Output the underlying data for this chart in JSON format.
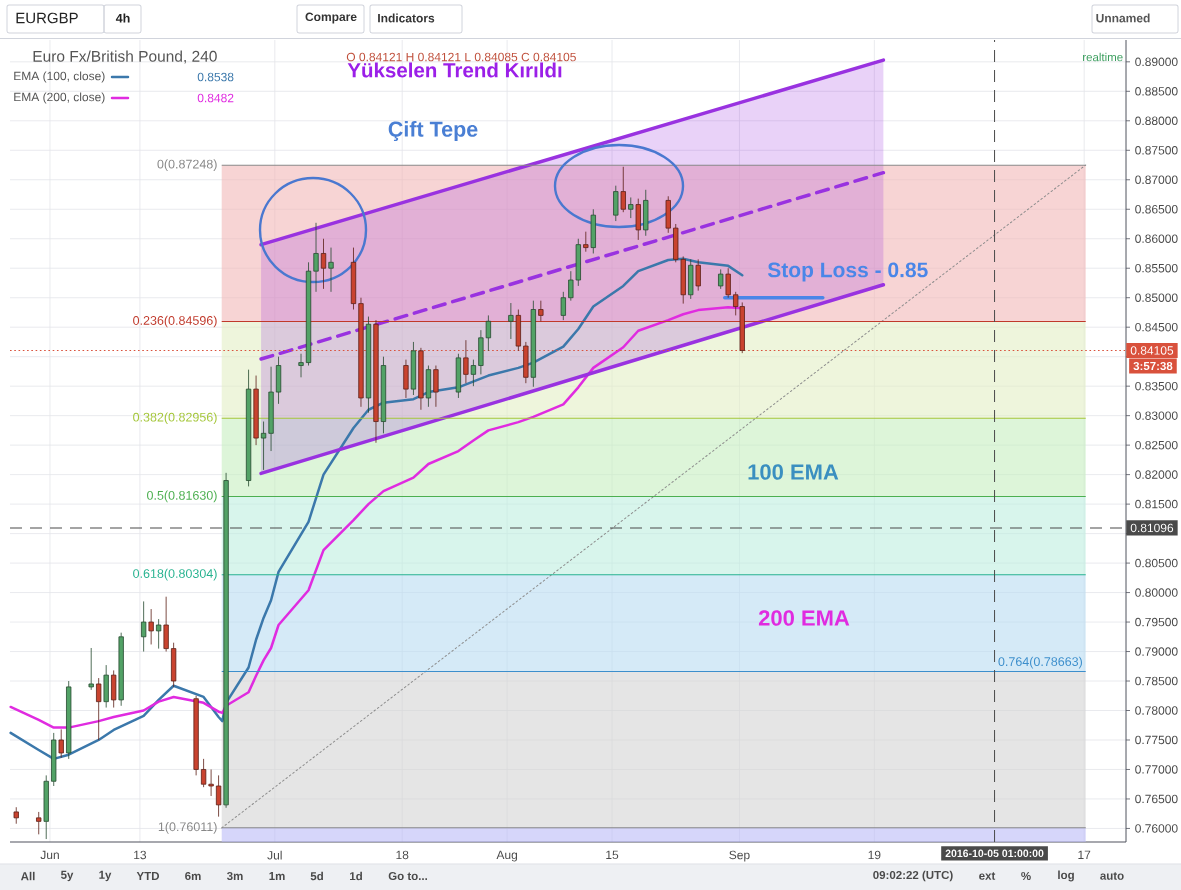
{
  "chart_data": {
    "type": "candlestick",
    "title": "Euro Fx/British Pound, 240",
    "subtitle": "O 0.84121 H 0.84121 L 0.84085 C 0.84105",
    "x": [
      "2016-05-27T12:00",
      "2016-05-30T12:00",
      "2016-05-31T12:00",
      "2016-06-01T12:00",
      "2016-06-02T12:00",
      "2016-06-03T12:00",
      "2016-06-06T12:00",
      "2016-06-07T12:00",
      "2016-06-08T12:00",
      "2016-06-09T12:00",
      "2016-06-10T12:00",
      "2016-06-13T12:00",
      "2016-06-14T12:00",
      "2016-06-15T12:00",
      "2016-06-16T12:00",
      "2016-06-17T12:00",
      "2016-06-20T12:00",
      "2016-06-21T12:00",
      "2016-06-22T12:00",
      "2016-06-23T12:00",
      "2016-06-24T12:00",
      "2016-06-27T12:00",
      "2016-06-28T12:00",
      "2016-06-29T12:00",
      "2016-06-30T12:00",
      "2016-07-01T12:00",
      "2016-07-04T12:00",
      "2016-07-05T12:00",
      "2016-07-06T12:00",
      "2016-07-07T12:00",
      "2016-07-08T12:00",
      "2016-07-11T12:00",
      "2016-07-12T12:00",
      "2016-07-13T12:00",
      "2016-07-14T12:00",
      "2016-07-15T12:00",
      "2016-07-18T12:00",
      "2016-07-19T12:00",
      "2016-07-20T12:00",
      "2016-07-21T12:00",
      "2016-07-22T12:00",
      "2016-07-25T12:00",
      "2016-07-26T12:00",
      "2016-07-27T12:00",
      "2016-07-28T12:00",
      "2016-07-29T12:00",
      "2016-08-01T12:00",
      "2016-08-02T12:00",
      "2016-08-03T12:00",
      "2016-08-04T12:00",
      "2016-08-05T12:00",
      "2016-08-08T12:00",
      "2016-08-09T12:00",
      "2016-08-10T12:00",
      "2016-08-11T12:00",
      "2016-08-12T12:00",
      "2016-08-15T12:00",
      "2016-08-16T12:00",
      "2016-08-17T12:00",
      "2016-08-18T12:00",
      "2016-08-19T12:00",
      "2016-08-22T12:00",
      "2016-08-23T12:00",
      "2016-08-24T12:00",
      "2016-08-25T12:00",
      "2016-08-26T12:00",
      "2016-08-29T12:00",
      "2016-08-30T12:00",
      "2016-08-31T12:00",
      "2016-09-01T09:00"
    ],
    "ohlc": [
      [
        0.7628,
        0.7636,
        0.7608,
        0.7618
      ],
      [
        0.7618,
        0.7628,
        0.759,
        0.7612
      ],
      [
        0.7612,
        0.769,
        0.7582,
        0.768
      ],
      [
        0.768,
        0.7762,
        0.7672,
        0.775
      ],
      [
        0.775,
        0.7768,
        0.772,
        0.7728
      ],
      [
        0.7728,
        0.785,
        0.7718,
        0.784
      ],
      [
        0.784,
        0.7906,
        0.7835,
        0.7845
      ],
      [
        0.7845,
        0.7855,
        0.775,
        0.7815
      ],
      [
        0.7815,
        0.7877,
        0.7805,
        0.786
      ],
      [
        0.786,
        0.7868,
        0.7805,
        0.7818
      ],
      [
        0.7818,
        0.7932,
        0.7808,
        0.7925
      ],
      [
        0.7925,
        0.7985,
        0.79,
        0.795
      ],
      [
        0.795,
        0.7972,
        0.7912,
        0.7935
      ],
      [
        0.7935,
        0.7955,
        0.7905,
        0.7945
      ],
      [
        0.7945,
        0.7993,
        0.79,
        0.7905
      ],
      [
        0.7905,
        0.7915,
        0.784,
        0.785
      ],
      [
        0.782,
        0.7825,
        0.769,
        0.77
      ],
      [
        0.77,
        0.7718,
        0.767,
        0.7675
      ],
      [
        0.7675,
        0.77,
        0.7655,
        0.7672
      ],
      [
        0.7672,
        0.769,
        0.762,
        0.764
      ],
      [
        0.764,
        0.8203,
        0.7635,
        0.819
      ],
      [
        0.819,
        0.8378,
        0.818,
        0.8345
      ],
      [
        0.8345,
        0.8368,
        0.825,
        0.8262
      ],
      [
        0.8262,
        0.829,
        0.8208,
        0.827
      ],
      [
        0.827,
        0.8383,
        0.824,
        0.834
      ],
      [
        0.834,
        0.84,
        0.832,
        0.8385
      ],
      [
        0.8385,
        0.8405,
        0.8365,
        0.839
      ],
      [
        0.839,
        0.856,
        0.8385,
        0.8545
      ],
      [
        0.8545,
        0.8627,
        0.851,
        0.8575
      ],
      [
        0.8575,
        0.86,
        0.8515,
        0.855
      ],
      [
        0.855,
        0.8585,
        0.851,
        0.856
      ],
      [
        0.856,
        0.8585,
        0.848,
        0.849
      ],
      [
        0.849,
        0.85,
        0.8315,
        0.833
      ],
      [
        0.833,
        0.8468,
        0.8305,
        0.8455
      ],
      [
        0.8455,
        0.8462,
        0.8254,
        0.829
      ],
      [
        0.829,
        0.84,
        0.827,
        0.8385
      ],
      [
        0.8385,
        0.8395,
        0.833,
        0.8345
      ],
      [
        0.8345,
        0.8425,
        0.8335,
        0.841
      ],
      [
        0.841,
        0.8415,
        0.831,
        0.833
      ],
      [
        0.833,
        0.8385,
        0.8315,
        0.8378
      ],
      [
        0.8378,
        0.8385,
        0.8315,
        0.834
      ],
      [
        0.834,
        0.8405,
        0.833,
        0.8398
      ],
      [
        0.8398,
        0.8428,
        0.8355,
        0.837
      ],
      [
        0.837,
        0.8395,
        0.835,
        0.8385
      ],
      [
        0.8385,
        0.8445,
        0.837,
        0.8432
      ],
      [
        0.8432,
        0.847,
        0.841,
        0.846
      ],
      [
        0.846,
        0.8491,
        0.843,
        0.847
      ],
      [
        0.847,
        0.848,
        0.841,
        0.8418
      ],
      [
        0.8418,
        0.8425,
        0.8355,
        0.8365
      ],
      [
        0.8365,
        0.8495,
        0.8349,
        0.848
      ],
      [
        0.848,
        0.8495,
        0.846,
        0.847
      ],
      [
        0.847,
        0.851,
        0.8462,
        0.85
      ],
      [
        0.85,
        0.8545,
        0.8495,
        0.853
      ],
      [
        0.853,
        0.86,
        0.852,
        0.859
      ],
      [
        0.859,
        0.8612,
        0.8578,
        0.8585
      ],
      [
        0.8585,
        0.865,
        0.8575,
        0.864
      ],
      [
        0.864,
        0.869,
        0.863,
        0.868
      ],
      [
        0.868,
        0.8722,
        0.8645,
        0.865
      ],
      [
        0.865,
        0.867,
        0.8635,
        0.8658
      ],
      [
        0.8658,
        0.8668,
        0.8598,
        0.8615
      ],
      [
        0.8615,
        0.8683,
        0.8605,
        0.8665
      ],
      [
        0.8665,
        0.8672,
        0.861,
        0.8618
      ],
      [
        0.8618,
        0.8625,
        0.856,
        0.8565
      ],
      [
        0.8565,
        0.857,
        0.849,
        0.8505
      ],
      [
        0.8505,
        0.8565,
        0.8498,
        0.8555
      ],
      [
        0.8555,
        0.8565,
        0.8512,
        0.852
      ],
      [
        0.852,
        0.8548,
        0.8515,
        0.854
      ],
      [
        0.854,
        0.855,
        0.85,
        0.8505
      ],
      [
        0.8505,
        0.851,
        0.847,
        0.8485
      ],
      [
        0.8485,
        0.8492,
        0.8406,
        0.84105
      ]
    ],
    "colors": [
      "#c9432f",
      "#c9432f",
      "#52a266",
      "#52a266",
      "#c9432f",
      "#52a266",
      "#52a266",
      "#c9432f",
      "#52a266",
      "#c9432f",
      "#52a266",
      "#52a266",
      "#c9432f",
      "#52a266",
      "#c9432f",
      "#c9432f",
      "#c9432f",
      "#c9432f",
      "#c9432f",
      "#c9432f",
      "#52a266",
      "#52a266",
      "#c9432f",
      "#52a266",
      "#52a266",
      "#52a266",
      "#52a266",
      "#52a266",
      "#52a266",
      "#c9432f",
      "#52a266",
      "#c9432f",
      "#c9432f",
      "#52a266",
      "#c9432f",
      "#52a266",
      "#c9432f",
      "#52a266",
      "#c9432f",
      "#52a266",
      "#c9432f",
      "#52a266",
      "#c9432f",
      "#52a266",
      "#52a266",
      "#52a266",
      "#52a266",
      "#c9432f",
      "#c9432f",
      "#52a266",
      "#c9432f",
      "#52a266",
      "#52a266",
      "#52a266",
      "#c9432f",
      "#52a266",
      "#52a266",
      "#c9432f",
      "#52a266",
      "#c9432f",
      "#52a266",
      "#c9432f",
      "#c9432f",
      "#c9432f",
      "#52a266",
      "#c9432f",
      "#52a266",
      "#c9432f",
      "#c9432f",
      "#c9432f"
    ],
    "series": [
      {
        "name": "EMA (100, close)",
        "type": "line",
        "color": "#3b78ab",
        "x": [
          "2016-05-26T18:00",
          "2016-05-30T12:00",
          "2016-06-01T12:00",
          "2016-06-03T12:00",
          "2016-06-07T12:00",
          "2016-06-09T12:00",
          "2016-06-13T12:00",
          "2016-06-15T12:00",
          "2016-06-17T12:00",
          "2016-06-21T12:00",
          "2016-06-23T12:00",
          "2016-06-24T00:00",
          "2016-06-24T12:00",
          "2016-06-27T12:00",
          "2016-06-28T12:00",
          "2016-06-29T12:00",
          "2016-06-30T12:00",
          "2016-07-01T12:00",
          "2016-07-05T12:00",
          "2016-07-07T12:00",
          "2016-07-11T12:00",
          "2016-07-13T12:00",
          "2016-07-15T12:00",
          "2016-07-19T12:00",
          "2016-07-21T12:00",
          "2016-07-25T12:00",
          "2016-07-27T12:00",
          "2016-07-29T12:00",
          "2016-08-02T12:00",
          "2016-08-04T12:00",
          "2016-08-08T12:00",
          "2016-08-10T12:00",
          "2016-08-12T12:00",
          "2016-08-16T12:00",
          "2016-08-18T12:00",
          "2016-08-22T12:00",
          "2016-08-24T12:00",
          "2016-08-26T12:00",
          "2016-08-30T12:00",
          "2016-09-01T09:00"
        ],
        "values": [
          0.7762,
          0.7733,
          0.7718,
          0.7725,
          0.775,
          0.7767,
          0.7791,
          0.7818,
          0.7842,
          0.7823,
          0.7789,
          0.7782,
          0.7813,
          0.7873,
          0.792,
          0.7957,
          0.7987,
          0.8035,
          0.812,
          0.82,
          0.8279,
          0.831,
          0.8322,
          0.8328,
          0.834,
          0.8348,
          0.8358,
          0.8368,
          0.8381,
          0.839,
          0.8417,
          0.8447,
          0.8485,
          0.852,
          0.8545,
          0.8564,
          0.8566,
          0.856,
          0.8554,
          0.8538
        ]
      },
      {
        "name": "EMA (200, close)",
        "type": "line",
        "color": "#e02be0",
        "x": [
          "2016-05-26T18:00",
          "2016-05-30T12:00",
          "2016-06-01T12:00",
          "2016-06-03T12:00",
          "2016-06-07T12:00",
          "2016-06-09T12:00",
          "2016-06-13T12:00",
          "2016-06-15T12:00",
          "2016-06-17T12:00",
          "2016-06-21T12:00",
          "2016-06-23T12:00",
          "2016-06-24T00:00",
          "2016-06-24T12:00",
          "2016-06-27T12:00",
          "2016-06-28T12:00",
          "2016-06-29T12:00",
          "2016-06-30T12:00",
          "2016-07-01T12:00",
          "2016-07-05T12:00",
          "2016-07-07T12:00",
          "2016-07-11T12:00",
          "2016-07-13T12:00",
          "2016-07-15T12:00",
          "2016-07-19T12:00",
          "2016-07-21T12:00",
          "2016-07-25T12:00",
          "2016-07-27T12:00",
          "2016-07-29T12:00",
          "2016-08-02T12:00",
          "2016-08-04T12:00",
          "2016-08-08T12:00",
          "2016-08-10T12:00",
          "2016-08-12T12:00",
          "2016-08-16T12:00",
          "2016-08-18T12:00",
          "2016-08-22T12:00",
          "2016-08-24T12:00",
          "2016-08-26T12:00",
          "2016-08-30T12:00",
          "2016-09-01T09:00"
        ],
        "values": [
          0.7806,
          0.7784,
          0.7771,
          0.7771,
          0.7782,
          0.7789,
          0.78,
          0.7815,
          0.7823,
          0.7813,
          0.7798,
          0.7796,
          0.7808,
          0.7831,
          0.7859,
          0.7885,
          0.7906,
          0.7945,
          0.8004,
          0.8072,
          0.8123,
          0.815,
          0.8172,
          0.8195,
          0.8218,
          0.824,
          0.8258,
          0.8275,
          0.8289,
          0.8298,
          0.8319,
          0.8348,
          0.8381,
          0.8416,
          0.8444,
          0.8462,
          0.8472,
          0.8479,
          0.8484,
          0.8482
        ]
      },
      {
        "type": "line",
        "color": "#9932e0",
        "x": [
          "2016-06-29T04:00",
          "2016-09-20T05:00"
        ],
        "values": [
          0.859,
          0.8903
        ]
      },
      {
        "type": "line",
        "color": "#9932e0",
        "line_style": "dashed",
        "x": [
          "2016-06-29T04:00",
          "2016-09-20T05:00"
        ],
        "values": [
          0.8396,
          0.8712
        ],
        "lower": [
          0.8202,
          0.8522
        ],
        "upper": [
          0.859,
          0.8903
        ]
      },
      {
        "type": "line",
        "color": "#9932e0",
        "x": [
          "2016-06-29T04:00",
          "2016-09-20T05:00"
        ],
        "values": [
          0.8202,
          0.8522
        ]
      },
      {
        "type": "line",
        "color": "#4a86e8",
        "x": [
          "2016-08-30T01:00",
          "2016-09-12T03:00"
        ],
        "values": [
          0.85,
          0.85
        ]
      },
      {
        "type": "line",
        "color": "#8c8c8c",
        "line_style": "dotted",
        "x": [
          "2016-06-23T22:00",
          "2016-10-17T05:00"
        ],
        "values": [
          0.7601,
          0.8725
        ]
      }
    ],
    "xlim": [
      "2016-05-26T16:00",
      "2016-10-22T14:00"
    ],
    "ylim": [
      0.7577,
      0.8937
    ],
    "xticks": [
      {
        "value": "2016-06-01",
        "label": "Jun"
      },
      {
        "value": "2016-06-13",
        "label": "13"
      },
      {
        "value": "2016-07-01",
        "label": "Jul"
      },
      {
        "value": "2016-07-18",
        "label": "18"
      },
      {
        "value": "2016-08-01",
        "label": "Aug"
      },
      {
        "value": "2016-08-15",
        "label": "15"
      },
      {
        "value": "2016-09-01",
        "label": "Sep"
      },
      {
        "value": "2016-09-19",
        "label": "19"
      },
      {
        "value": "2016-10-17",
        "label": "17"
      }
    ],
    "yticks": [
      {
        "value": 0.76,
        "label": "0.76000"
      },
      {
        "value": 0.765,
        "label": "0.76500"
      },
      {
        "value": 0.77,
        "label": "0.77000"
      },
      {
        "value": 0.775,
        "label": "0.77500"
      },
      {
        "value": 0.78,
        "label": "0.78000"
      },
      {
        "value": 0.785,
        "label": "0.78500"
      },
      {
        "value": 0.79,
        "label": "0.79000"
      },
      {
        "value": 0.795,
        "label": "0.79500"
      },
      {
        "value": 0.8,
        "label": "0.80000"
      },
      {
        "value": 0.805,
        "label": "0.80500"
      },
      {
        "value": 0.81,
        "label": null
      },
      {
        "value": 0.815,
        "label": "0.81500"
      },
      {
        "value": 0.82,
        "label": "0.82000"
      },
      {
        "value": 0.825,
        "label": "0.82500"
      },
      {
        "value": 0.83,
        "label": "0.83000"
      },
      {
        "value": 0.835,
        "label": "0.83500"
      },
      {
        "value": 0.84,
        "label": null
      },
      {
        "value": 0.845,
        "label": "0.84500"
      },
      {
        "value": 0.85,
        "label": "0.85000"
      },
      {
        "value": 0.855,
        "label": "0.85500"
      },
      {
        "value": 0.86,
        "label": "0.86000"
      },
      {
        "value": 0.865,
        "label": "0.86500"
      },
      {
        "value": 0.87,
        "label": "0.87000"
      },
      {
        "value": 0.875,
        "label": "0.87500"
      },
      {
        "value": 0.88,
        "label": "0.88000"
      },
      {
        "value": 0.885,
        "label": "0.88500"
      },
      {
        "value": 0.89,
        "label": "0.89000"
      }
    ],
    "grid": true,
    "legend": "top left",
    "ref_lines": [
      {
        "axis": "y",
        "value": 0.87248,
        "label": "0(0.87248)",
        "color": "#888888",
        "line_style": "solid"
      },
      {
        "axis": "y",
        "value": 0.84596,
        "label": "0.236(0.84596)",
        "color": "#c0392b",
        "line_style": "solid"
      },
      {
        "axis": "y",
        "value": 0.82956,
        "label": "0.382(0.82956)",
        "color": "#a4c639",
        "line_style": "solid"
      },
      {
        "axis": "y",
        "value": 0.8163,
        "label": "0.5(0.81630)",
        "color": "#4caf50",
        "line_style": "solid"
      },
      {
        "axis": "y",
        "value": 0.80304,
        "label": "0.618(0.80304)",
        "color": "#26b28f",
        "line_style": "solid"
      },
      {
        "axis": "y",
        "value": 0.78663,
        "label": "0.764(0.78663)",
        "color": "#3d8fcc",
        "line_style": "solid"
      },
      {
        "axis": "y",
        "value": 0.76011,
        "label": "1(0.76011)",
        "color": "#888888",
        "line_style": "solid"
      },
      {
        "axis": "y",
        "value": 0.84105,
        "label": "0.84105",
        "color": "#d9513c",
        "line_style": "dotted"
      },
      {
        "axis": "y",
        "value": 0.81096,
        "label": "0.81096",
        "color": "#4a4a4a",
        "line_style": "dashed"
      },
      {
        "axis": "x",
        "value": "2016-10-05T01:00",
        "label": "2016-10-05 01:00:00",
        "color": "#4a4a4a",
        "line_style": "dashed"
      }
    ],
    "bands": [
      {
        "axis": "y",
        "from": 0.84596,
        "to": 0.87248,
        "color": "#f7d4d4"
      },
      {
        "axis": "y",
        "from": 0.82956,
        "to": 0.84596,
        "color": "#eef5dc"
      },
      {
        "axis": "y",
        "from": 0.8163,
        "to": 0.82956,
        "color": "#ddf5d9"
      },
      {
        "axis": "y",
        "from": 0.80304,
        "to": 0.8163,
        "color": "#d8f5ec"
      },
      {
        "axis": "y",
        "from": 0.78663,
        "to": 0.80304,
        "color": "#d5eaf7"
      },
      {
        "axis": "y",
        "from": 0.76011,
        "to": 0.78663,
        "color": "#e5e5e5"
      },
      {
        "axis": "y",
        "from": 0.7577,
        "to": 0.76011,
        "color": "#d6d6fa"
      }
    ],
    "annotations": [
      "Yükselen Trend Kırıldı",
      "Çift Tepe",
      "Stop Loss - 0.85",
      "100 EMA",
      "200 EMA",
      "0.8538",
      "0.8482",
      "3:57:38",
      "realtime",
      "EURGBP",
      "4h",
      "Compare",
      "Indicators",
      "Unnamed",
      "All",
      "5y",
      "1y",
      "YTD",
      "6m",
      "3m",
      "1m",
      "5d",
      "1d",
      "Go to...",
      "09:02:22 (UTC)",
      "ext",
      "%",
      "log",
      "auto"
    ]
  }
}
